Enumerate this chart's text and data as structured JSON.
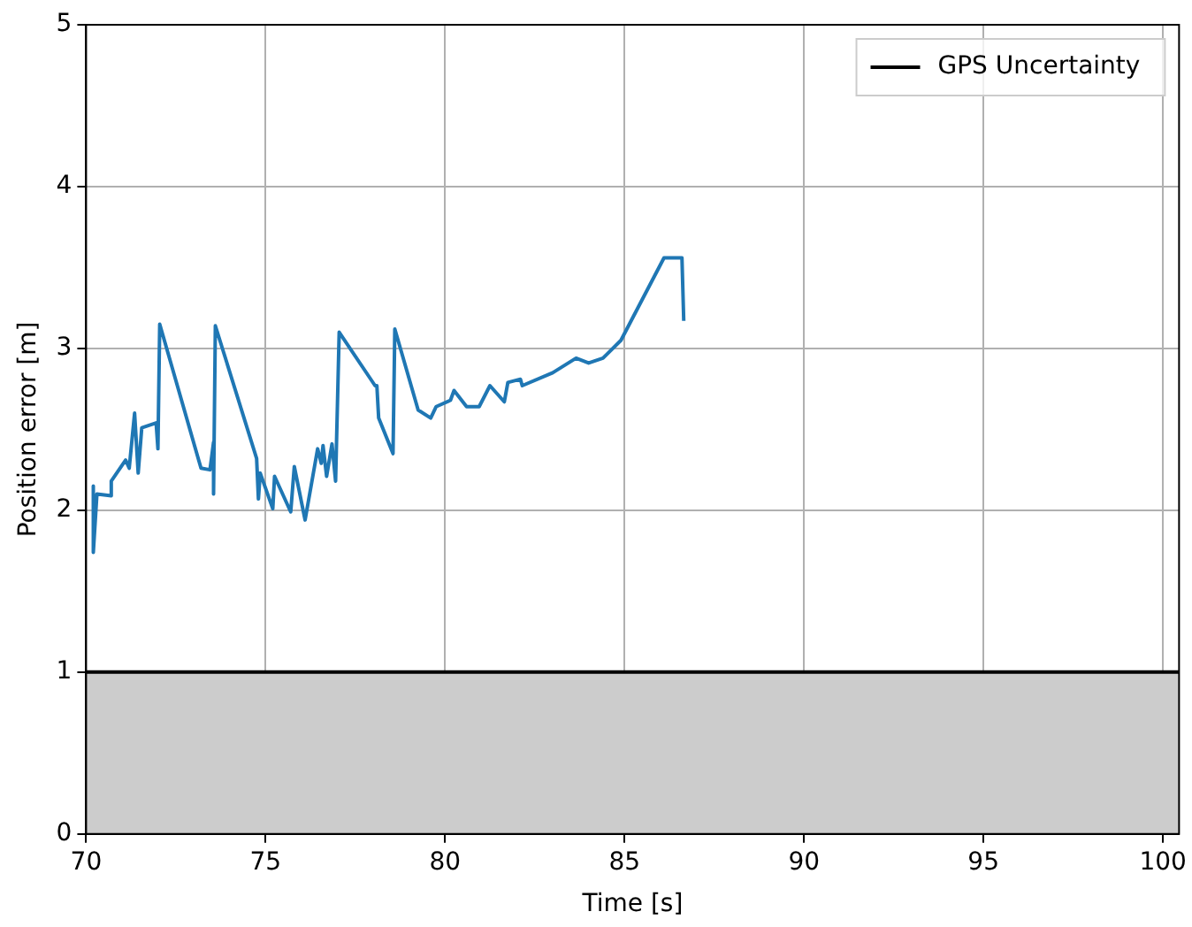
{
  "chart_data": {
    "type": "line",
    "xlabel": "Time [s]",
    "ylabel": "Position error [m]",
    "xlim": [
      70,
      100.45
    ],
    "xticks": [
      70,
      75,
      80,
      85,
      90,
      95,
      100
    ],
    "ylim": [
      0,
      5
    ],
    "yticks": [
      0,
      1,
      2,
      3,
      4,
      5
    ],
    "grid": true,
    "legend": "top right",
    "series": [
      {
        "color": "#1f77b4",
        "x": [
          70.2,
          70.2,
          70.3,
          70.7,
          70.7,
          71.1,
          71.2,
          71.35,
          71.45,
          71.55,
          71.95,
          72.0,
          72.05,
          73.2,
          73.45,
          73.55,
          73.55,
          73.6,
          74.75,
          74.8,
          74.85,
          75.2,
          75.25,
          75.7,
          75.8,
          76.1,
          76.45,
          76.55,
          76.6,
          76.7,
          76.85,
          76.95,
          77.05,
          78.05,
          78.1,
          78.15,
          78.55,
          78.6,
          79.25,
          79.6,
          79.75,
          80.15,
          80.25,
          80.6,
          80.95,
          81.25,
          81.65,
          81.75,
          82.1,
          82.15,
          83.0,
          83.65,
          84.0,
          84.4,
          84.9,
          86.1,
          86.6,
          86.65
        ],
        "values": [
          2.15,
          1.74,
          2.1,
          2.09,
          2.18,
          2.31,
          2.26,
          2.6,
          2.23,
          2.51,
          2.54,
          2.38,
          3.15,
          2.26,
          2.25,
          2.42,
          2.1,
          3.14,
          2.32,
          2.07,
          2.23,
          2.01,
          2.21,
          1.99,
          2.27,
          1.94,
          2.38,
          2.29,
          2.4,
          2.21,
          2.41,
          2.18,
          3.1,
          2.77,
          2.77,
          2.57,
          2.35,
          3.12,
          2.62,
          2.57,
          2.64,
          2.68,
          2.74,
          2.64,
          2.64,
          2.77,
          2.67,
          2.79,
          2.81,
          2.77,
          2.85,
          2.94,
          2.91,
          2.94,
          3.05,
          3.56,
          3.56,
          3.17
        ]
      }
    ],
    "ref_lines": [
      {
        "axis": "y",
        "value": 1,
        "label": "GPS Uncertainty",
        "color": "#000000"
      }
    ],
    "bands": [
      {
        "axis": "y",
        "from": 0,
        "to": 1,
        "color": "#cccccc"
      }
    ]
  }
}
